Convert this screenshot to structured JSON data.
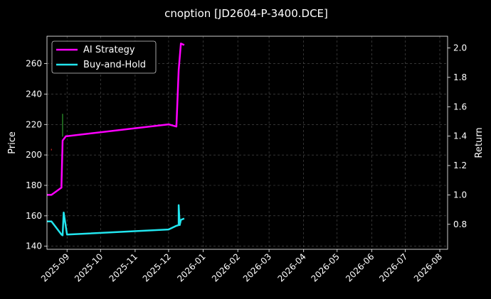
{
  "chart_data": {
    "type": "line",
    "title": "cnoption [JD2604-P-3400.DCE]",
    "ylabel_left": "Price",
    "ylabel_right": "Return",
    "xlim": [
      "2025-08-14",
      "2026-08-08"
    ],
    "ylim_left": [
      138,
      278
    ],
    "ylim_right": [
      0.63,
      2.08
    ],
    "x_ticks": [
      "2025-09",
      "2025-10",
      "2025-11",
      "2025-12",
      "2026-01",
      "2026-02",
      "2026-03",
      "2026-04",
      "2026-05",
      "2026-06",
      "2026-07",
      "2026-08"
    ],
    "y_ticks_left": [
      140,
      160,
      180,
      200,
      220,
      240,
      260
    ],
    "y_ticks_right": [
      0.8,
      1.0,
      1.2,
      1.4,
      1.6,
      1.8,
      2.0
    ],
    "grid": true,
    "legend_position": "top-left",
    "series": [
      {
        "name": "AI Strategy",
        "color": "#ff00ff",
        "axis": "right",
        "points": [
          [
            "2025-08-14",
            1.0
          ],
          [
            "2025-08-18",
            1.0
          ],
          [
            "2025-08-27",
            1.05
          ],
          [
            "2025-08-27",
            1.07
          ],
          [
            "2025-08-28",
            1.37
          ],
          [
            "2025-08-31",
            1.4
          ],
          [
            "2025-09-01",
            1.4
          ],
          [
            "2025-12-01",
            1.48
          ],
          [
            "2025-12-08",
            1.465
          ],
          [
            "2025-12-10",
            1.85
          ],
          [
            "2025-12-12",
            2.03
          ],
          [
            "2025-12-15",
            2.02
          ]
        ]
      },
      {
        "name": "Buy-and-Hold",
        "color": "#22e5ee",
        "axis": "right",
        "points": [
          [
            "2025-08-14",
            0.82
          ],
          [
            "2025-08-18",
            0.82
          ],
          [
            "2025-08-27",
            0.73
          ],
          [
            "2025-08-28",
            0.725
          ],
          [
            "2025-08-29",
            0.88
          ],
          [
            "2025-09-01",
            0.73
          ],
          [
            "2025-12-01",
            0.765
          ],
          [
            "2025-12-08",
            0.79
          ],
          [
            "2025-12-10",
            0.795
          ],
          [
            "2025-12-10",
            0.93
          ],
          [
            "2025-12-11",
            0.795
          ],
          [
            "2025-12-12",
            0.83
          ],
          [
            "2025-12-15",
            0.84
          ]
        ]
      }
    ],
    "price_marks": [
      {
        "date": "2025-08-28",
        "low": 212,
        "high": 227,
        "color": "#2ea02e"
      },
      {
        "date": "2025-08-18",
        "low": 203,
        "high": 204,
        "color": "#cc2222"
      }
    ]
  }
}
